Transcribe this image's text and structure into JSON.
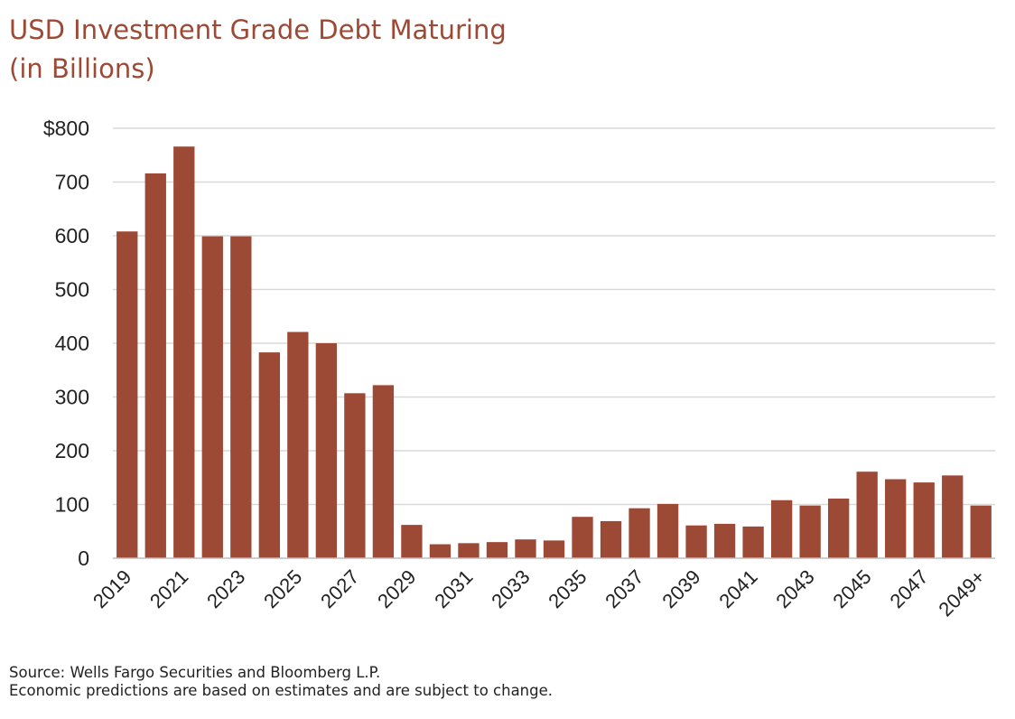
{
  "chart_data": {
    "type": "bar",
    "title": "USD Investment Grade Debt Maturing",
    "subtitle": "(in Billions)",
    "categories": [
      "2019",
      "2020",
      "2021",
      "2022",
      "2023",
      "2024",
      "2025",
      "2026",
      "2027",
      "2028",
      "2029",
      "2030",
      "2031",
      "2032",
      "2033",
      "2034",
      "2035",
      "2036",
      "2037",
      "2038",
      "2039",
      "2040",
      "2041",
      "2042",
      "2043",
      "2044",
      "2045",
      "2046",
      "2047",
      "2048",
      "2049+"
    ],
    "x_tick_labels": [
      "2019",
      "2021",
      "2023",
      "2025",
      "2027",
      "2029",
      "2031",
      "2033",
      "2035",
      "2037",
      "2039",
      "2041",
      "2043",
      "2045",
      "2047",
      "2049+"
    ],
    "values": [
      608,
      716,
      766,
      599,
      599,
      383,
      421,
      400,
      307,
      322,
      62,
      26,
      28,
      30,
      35,
      33,
      77,
      69,
      93,
      101,
      61,
      64,
      59,
      108,
      98,
      111,
      161,
      147,
      141,
      154,
      98
    ],
    "ylim": [
      0,
      800
    ],
    "yticks": [
      0,
      100,
      200,
      300,
      400,
      500,
      600,
      700,
      800
    ],
    "ytick_labels": [
      "0",
      "100",
      "200",
      "300",
      "400",
      "500",
      "600",
      "700",
      "$800"
    ],
    "xlabel": "",
    "ylabel": "",
    "grid": true,
    "legend": "none",
    "bar_color": "#9c4a35"
  },
  "footer": {
    "source": "Source: Wells Fargo Securities and Bloomberg L.P.",
    "note": "Economic predictions are based on estimates and are subject to change."
  },
  "colors": {
    "title": "#9c4a35",
    "bar": "#9c4a35",
    "grid": "#d9d9d9",
    "axis_text": "#222222"
  }
}
